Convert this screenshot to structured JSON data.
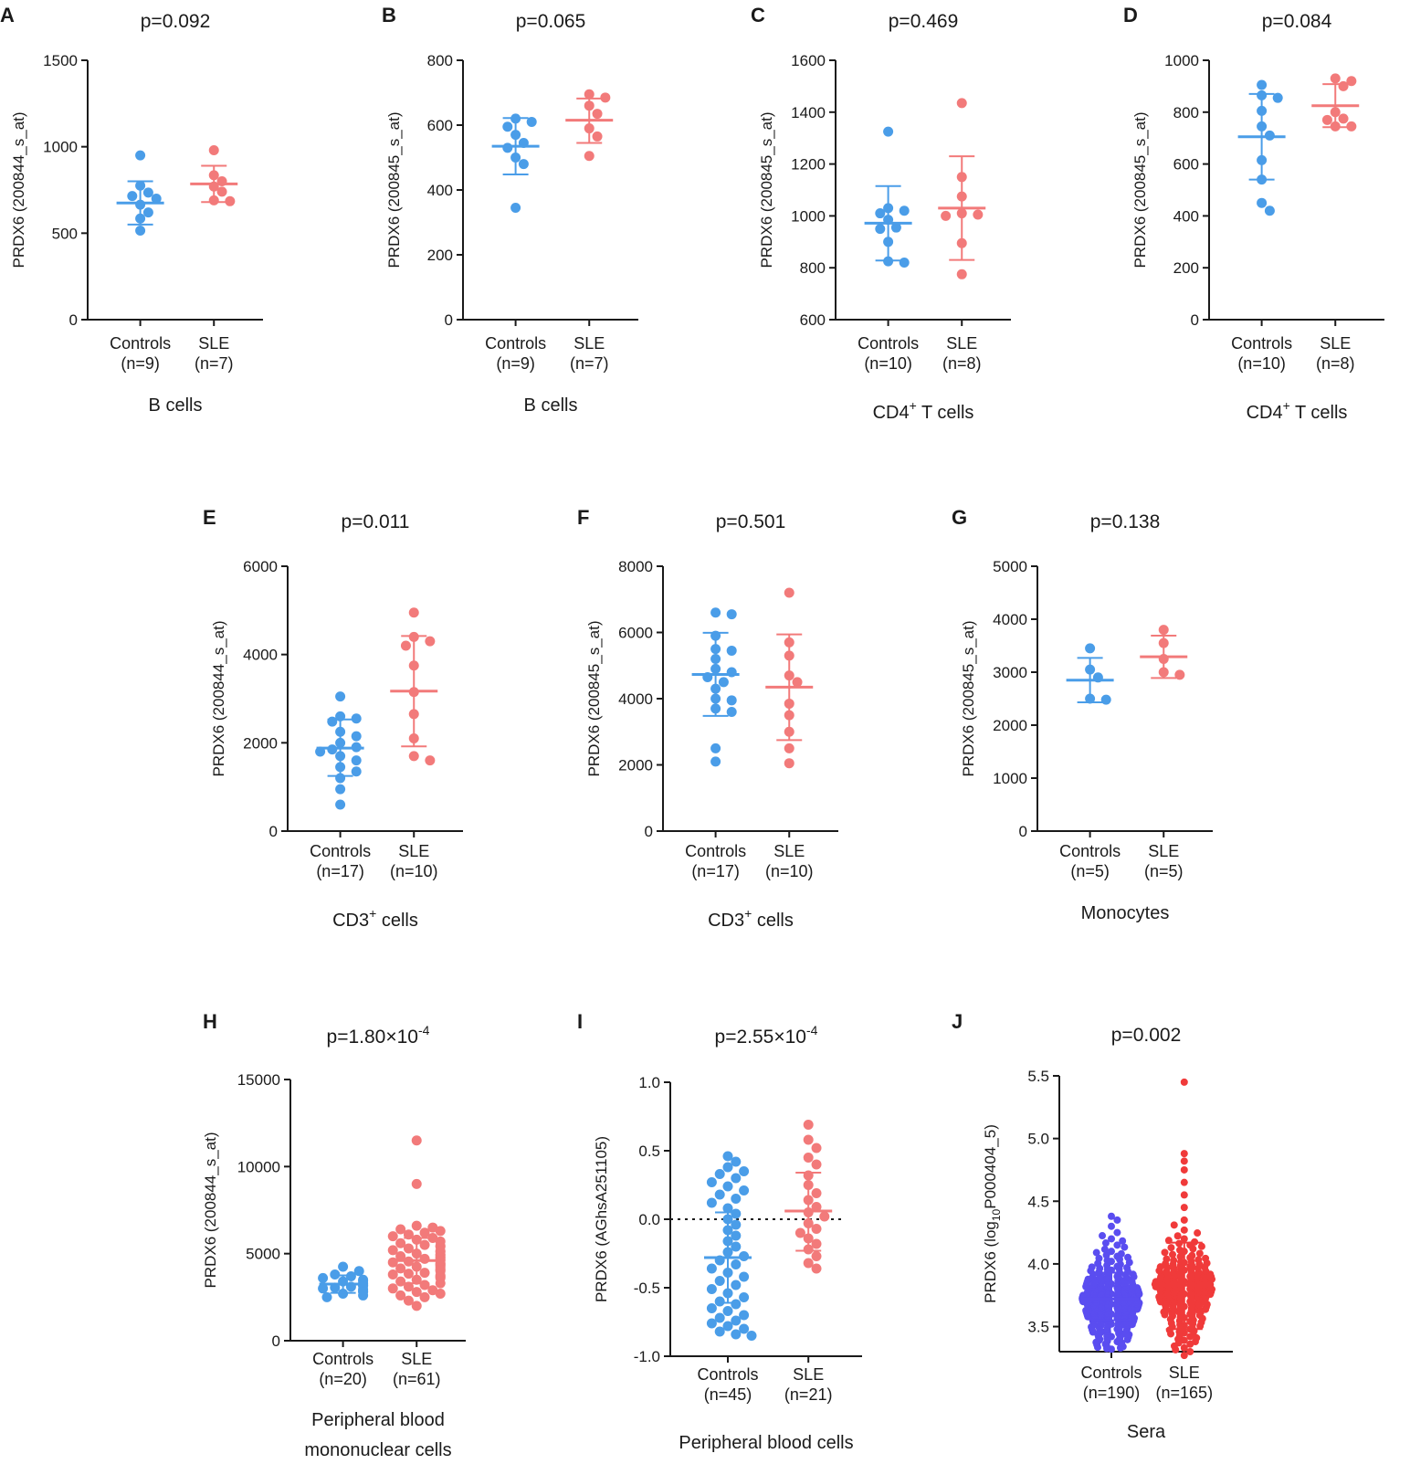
{
  "colors": {
    "control": "#4a9de8",
    "sle": "#f27a7a",
    "control_dense": "#5a4df0",
    "sle_dense": "#f03a3a",
    "axis": "#1a1a1a"
  },
  "chart_data": [
    {
      "letter": "A",
      "type": "scatter",
      "title": "p=0.092",
      "ylabel": "PRDX6 (200844_s_at)",
      "ylim": [
        0,
        1500
      ],
      "yticks": [
        "0",
        "500",
        "1000",
        "1500"
      ],
      "xlabel": "B cells",
      "categories": [
        "Controls",
        "SLE"
      ],
      "n_labels": [
        "(n=9)",
        "(n=7)"
      ],
      "series": [
        {
          "name": "Controls",
          "values": [
            950,
            775,
            735,
            715,
            700,
            665,
            620,
            585,
            515
          ],
          "mean": 675,
          "sd_low": 550,
          "sd_high": 800
        },
        {
          "name": "SLE",
          "values": [
            980,
            835,
            800,
            770,
            740,
            690,
            685
          ],
          "mean": 785,
          "sd_low": 680,
          "sd_high": 890
        }
      ]
    },
    {
      "letter": "B",
      "type": "scatter",
      "title": "p=0.065",
      "ylabel": "PRDX6 (200845_s_at)",
      "ylim": [
        0,
        800
      ],
      "yticks": [
        "0",
        "200",
        "400",
        "600",
        "800"
      ],
      "xlabel": "B cells",
      "categories": [
        "Controls",
        "SLE"
      ],
      "n_labels": [
        "(n=9)",
        "(n=7)"
      ],
      "series": [
        {
          "name": "Controls",
          "values": [
            620,
            610,
            595,
            570,
            545,
            530,
            500,
            480,
            345
          ],
          "mean": 535,
          "sd_low": 448,
          "sd_high": 622
        },
        {
          "name": "SLE",
          "values": [
            695,
            685,
            660,
            635,
            590,
            565,
            505
          ],
          "mean": 615,
          "sd_low": 545,
          "sd_high": 682
        }
      ]
    },
    {
      "letter": "C",
      "type": "scatter",
      "title": "p=0.469",
      "ylabel": "PRDX6 (200845_s_at)",
      "ylim": [
        600,
        1600
      ],
      "yticks": [
        "600",
        "800",
        "1000",
        "1200",
        "1400",
        "1600"
      ],
      "xlabel": "CD4",
      "xlabel_sup": "+",
      "xlabel_rest": " T cells",
      "categories": [
        "Controls",
        "SLE"
      ],
      "n_labels": [
        "(n=10)",
        "(n=8)"
      ],
      "series": [
        {
          "name": "Controls",
          "values": [
            1325,
            1030,
            1020,
            1010,
            985,
            955,
            950,
            900,
            825,
            820
          ],
          "mean": 972,
          "sd_low": 828,
          "sd_high": 1115
        },
        {
          "name": "SLE",
          "values": [
            1435,
            1150,
            1075,
            1010,
            1005,
            1000,
            895,
            775
          ],
          "mean": 1030,
          "sd_low": 830,
          "sd_high": 1230
        }
      ]
    },
    {
      "letter": "D",
      "type": "scatter",
      "title": "p=0.084",
      "ylabel": "PRDX6 (200845_s_at)",
      "ylim": [
        0,
        1000
      ],
      "yticks": [
        "0",
        "200",
        "400",
        "600",
        "800",
        "1000"
      ],
      "xlabel": "CD4",
      "xlabel_sup": "+",
      "xlabel_rest": " T cells",
      "categories": [
        "Controls",
        "SLE"
      ],
      "n_labels": [
        "(n=10)",
        "(n=8)"
      ],
      "series": [
        {
          "name": "Controls",
          "values": [
            905,
            865,
            855,
            805,
            745,
            710,
            615,
            540,
            450,
            420
          ],
          "mean": 705,
          "sd_low": 540,
          "sd_high": 870
        },
        {
          "name": "SLE",
          "values": [
            930,
            920,
            900,
            800,
            775,
            770,
            745,
            745
          ],
          "mean": 825,
          "sd_low": 742,
          "sd_high": 908
        }
      ]
    },
    {
      "letter": "E",
      "type": "scatter",
      "title": "p=0.011",
      "ylabel": "PRDX6 (200844_s_at)",
      "ylim": [
        0,
        6000
      ],
      "yticks": [
        "0",
        "2000",
        "4000",
        "6000"
      ],
      "xlabel": "CD3",
      "xlabel_sup": "+",
      "xlabel_rest": " cells",
      "categories": [
        "Controls",
        "SLE"
      ],
      "n_labels": [
        "(n=17)",
        "(n=10)"
      ],
      "series": [
        {
          "name": "Controls",
          "values": [
            3050,
            2600,
            2550,
            2480,
            2250,
            2150,
            2000,
            1900,
            1850,
            1800,
            1700,
            1600,
            1450,
            1350,
            1200,
            950,
            600
          ],
          "mean": 1880,
          "sd_low": 1250,
          "sd_high": 2530
        },
        {
          "name": "SLE",
          "values": [
            4950,
            4400,
            4300,
            4200,
            3750,
            3150,
            2650,
            2100,
            1700,
            1600
          ],
          "mean": 3170,
          "sd_low": 1920,
          "sd_high": 4420
        }
      ]
    },
    {
      "letter": "F",
      "type": "scatter",
      "title": "p=0.501",
      "ylabel": "PRDX6 (200845_s_at)",
      "ylim": [
        0,
        8000
      ],
      "yticks": [
        "0",
        "2000",
        "4000",
        "6000",
        "8000"
      ],
      "xlabel": "CD3",
      "xlabel_sup": "+",
      "xlabel_rest": " cells",
      "categories": [
        "Controls",
        "SLE"
      ],
      "n_labels": [
        "(n=17)",
        "(n=10)"
      ],
      "series": [
        {
          "name": "Controls",
          "values": [
            6600,
            6550,
            5900,
            5500,
            5450,
            5200,
            4900,
            4800,
            4650,
            4500,
            4300,
            4000,
            3950,
            3700,
            3600,
            2500,
            2100
          ],
          "mean": 4730,
          "sd_low": 3480,
          "sd_high": 5990
        },
        {
          "name": "SLE",
          "values": [
            7200,
            5700,
            5300,
            4700,
            4500,
            3850,
            3500,
            3000,
            2500,
            2050
          ],
          "mean": 4350,
          "sd_low": 2750,
          "sd_high": 5940
        }
      ]
    },
    {
      "letter": "G",
      "type": "scatter",
      "title": "p=0.138",
      "ylabel": "PRDX6 (200845_s_at)",
      "ylim": [
        0,
        5000
      ],
      "yticks": [
        "0",
        "1000",
        "2000",
        "3000",
        "4000",
        "5000"
      ],
      "xlabel": "Monocytes",
      "categories": [
        "Controls",
        "SLE"
      ],
      "n_labels": [
        "(n=5)",
        "(n=5)"
      ],
      "series": [
        {
          "name": "Controls",
          "values": [
            3450,
            3050,
            2900,
            2500,
            2480
          ],
          "mean": 2850,
          "sd_low": 2430,
          "sd_high": 3270
        },
        {
          "name": "SLE",
          "values": [
            3800,
            3550,
            3250,
            3000,
            2950
          ],
          "mean": 3290,
          "sd_low": 2890,
          "sd_high": 3690
        }
      ]
    },
    {
      "letter": "H",
      "type": "scatter",
      "title": "p=1.80×10",
      "title_sup": "-4",
      "ylabel": "PRDX6 (200844_s_at)",
      "ylim": [
        0,
        15000
      ],
      "yticks": [
        "0",
        "5000",
        "10000",
        "15000"
      ],
      "xlabel": "Peripheral blood",
      "xlabel_line2": "mononuclear cells",
      "categories": [
        "Controls",
        "SLE"
      ],
      "n_labels": [
        "(n=20)",
        "(n=61)"
      ],
      "series": [
        {
          "name": "Controls",
          "values": [
            4250,
            4000,
            3800,
            3700,
            3600,
            3500,
            3450,
            3400,
            3300,
            3200,
            3150,
            3100,
            3050,
            3000,
            2950,
            2850,
            2800,
            2700,
            2600,
            2500
          ],
          "mean": 3250,
          "sd_low": 2750,
          "sd_high": 3750
        },
        {
          "name": "SLE",
          "values": [
            11500,
            9000,
            6600,
            6500,
            6400,
            6300,
            6200,
            6100,
            6000,
            5900,
            5800,
            5700,
            5600,
            5500,
            5450,
            5400,
            5300,
            5200,
            5150,
            5100,
            5000,
            4950,
            4900,
            4850,
            4800,
            4750,
            4700,
            4650,
            4600,
            4550,
            4500,
            4450,
            4400,
            4350,
            4300,
            4250,
            4200,
            4150,
            4100,
            4050,
            4000,
            3900,
            3850,
            3800,
            3750,
            3700,
            3650,
            3600,
            3500,
            3400,
            3300,
            3200,
            3100,
            3000,
            2900,
            2800,
            2700,
            2600,
            2500,
            2300,
            2000
          ],
          "mean": 4600,
          "sd_low": 3300,
          "sd_high": 5900
        }
      ]
    },
    {
      "letter": "I",
      "type": "scatter",
      "title": "p=2.55×10",
      "title_sup": "-4",
      "ylabel": "PRDX6 (AGhsA251105)",
      "ylim": [
        -1.0,
        1.0
      ],
      "yticks": [
        "-1.0",
        "-0.5",
        "0.0",
        "0.5",
        "1.0"
      ],
      "xlabel": "Peripheral blood cells",
      "zero_line": true,
      "categories": [
        "Controls",
        "SLE"
      ],
      "n_labels": [
        "(n=45)",
        "(n=21)"
      ],
      "series": [
        {
          "name": "Controls",
          "values": [
            0.46,
            0.42,
            0.38,
            0.35,
            0.33,
            0.3,
            0.27,
            0.24,
            0.21,
            0.18,
            0.15,
            0.12,
            0.08,
            0.04,
            0.0,
            -0.04,
            -0.08,
            -0.12,
            -0.16,
            -0.2,
            -0.24,
            -0.27,
            -0.3,
            -0.33,
            -0.36,
            -0.39,
            -0.42,
            -0.45,
            -0.48,
            -0.51,
            -0.54,
            -0.57,
            -0.6,
            -0.62,
            -0.65,
            -0.67,
            -0.7,
            -0.72,
            -0.74,
            -0.76,
            -0.78,
            -0.8,
            -0.82,
            -0.84,
            -0.85
          ],
          "mean": -0.28,
          "sd_low": -0.61,
          "sd_high": 0.05
        },
        {
          "name": "SLE",
          "values": [
            0.69,
            0.58,
            0.52,
            0.45,
            0.4,
            0.32,
            0.25,
            0.19,
            0.14,
            0.09,
            0.05,
            0.02,
            -0.03,
            -0.07,
            -0.1,
            -0.14,
            -0.18,
            -0.22,
            -0.27,
            -0.32,
            -0.36
          ],
          "mean": 0.06,
          "sd_low": -0.23,
          "sd_high": 0.34
        }
      ]
    },
    {
      "letter": "J",
      "type": "scatter",
      "title": "p=0.002",
      "ylabel": "PRDX6 (log",
      "ylabel_sub": "10",
      "ylabel_rest": "P000404_5)",
      "ylim": [
        3.3,
        5.5
      ],
      "yticks": [
        "3.5",
        "4.0",
        "4.5",
        "5.0",
        "5.5"
      ],
      "xlabel": "Sera",
      "dense": true,
      "categories": [
        "Controls",
        "SLE"
      ],
      "n_labels": [
        "(n=190)",
        "(n=165)"
      ],
      "series": [
        {
          "name": "Controls",
          "values": [
            3.32,
            3.34,
            3.36,
            3.38,
            3.4,
            3.42,
            3.44,
            3.46,
            3.48,
            3.5,
            3.52,
            3.54,
            3.55,
            3.57,
            3.58,
            3.59,
            3.6,
            3.61,
            3.62,
            3.63,
            3.64,
            3.65,
            3.66,
            3.67,
            3.68,
            3.69,
            3.7,
            3.71,
            3.72,
            3.73,
            3.74,
            3.75,
            3.76,
            3.77,
            3.78,
            3.79,
            3.8,
            3.81,
            3.82,
            3.84,
            3.86,
            3.88,
            3.9,
            3.92,
            3.95,
            3.98,
            4.02,
            4.06,
            4.1,
            4.15,
            4.2,
            4.25,
            4.3,
            4.35,
            4.38
          ],
          "mean": 3.72,
          "sd_low": 3.55,
          "sd_high": 3.93
        },
        {
          "name": "SLE",
          "values": [
            3.27,
            3.3,
            3.33,
            3.36,
            3.39,
            3.42,
            3.45,
            3.48,
            3.51,
            3.54,
            3.57,
            3.6,
            3.62,
            3.64,
            3.66,
            3.68,
            3.7,
            3.72,
            3.74,
            3.76,
            3.78,
            3.8,
            3.82,
            3.84,
            3.86,
            3.88,
            3.9,
            3.92,
            3.95,
            3.98,
            4.01,
            4.05,
            4.1,
            4.15,
            4.2,
            4.27,
            4.35,
            4.45,
            4.55,
            4.65,
            4.75,
            4.82,
            4.88,
            5.45
          ],
          "mean": 3.83,
          "sd_low": 3.48,
          "sd_high": 4.17
        }
      ]
    }
  ]
}
